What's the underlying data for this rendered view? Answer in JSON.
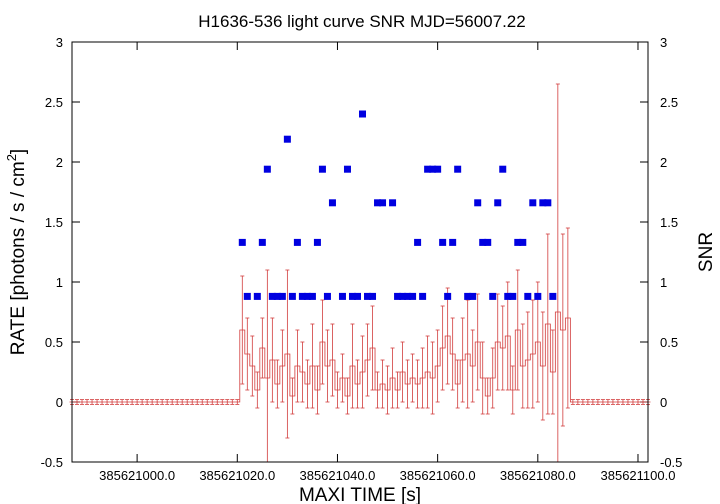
{
  "chart_data": {
    "type": "scatter",
    "title": "H1636-536 light curve  SNR MJD=56007.22",
    "xlabel": "MAXI TIME [s]",
    "ylabel": "RATE [photons / s / cm",
    "ylabel_sup": "2",
    "ylabel_end": "]",
    "y2label": "SNR",
    "xlim": [
      385620987.0,
      385621102.0
    ],
    "ylim": [
      -0.5,
      3
    ],
    "y2lim": [
      -0.5,
      3
    ],
    "x_ticks": [
      385621000.0,
      385621020.0,
      385621040.0,
      385621060.0,
      385621080.0,
      385621100.0
    ],
    "x_tick_labels": [
      "385621000.0",
      "385621020.0",
      "385621040.0",
      "385621060.0",
      "385621080.0",
      "385621100.0"
    ],
    "y_ticks": [
      -0.5,
      0,
      0.5,
      1,
      1.5,
      2,
      2.5,
      3
    ],
    "y_tick_labels": [
      "-0.5",
      "0",
      "0.5",
      "1",
      "1.5",
      "2",
      "2.5",
      "3"
    ],
    "y2_ticks": [
      -0.5,
      0,
      0.5,
      1,
      1.5,
      2,
      2.5,
      3
    ],
    "y2_tick_labels": [
      "-0.5",
      "0",
      "0.5",
      "1",
      "1.5",
      "2",
      "2.5",
      "3"
    ],
    "grid": false,
    "colors": {
      "rate": "#d23c3c",
      "snr": "#0000e0",
      "axis": "#000000"
    },
    "series": [
      {
        "type": "errorbar-step",
        "color": "#d23c3c",
        "x": [
          385620987,
          385620988,
          385620989,
          385620990,
          385620991,
          385620992,
          385620993,
          385620994,
          385620995,
          385620996,
          385620997,
          385620998,
          385620999,
          385621000,
          385621001,
          385621002,
          385621003,
          385621004,
          385621005,
          385621006,
          385621007,
          385621008,
          385621009,
          385621010,
          385621011,
          385621012,
          385621013,
          385621014,
          385621015,
          385621016,
          385621017,
          385621018,
          385621019,
          385621020,
          385621021,
          385621022,
          385621023,
          385621024,
          385621025,
          385621026,
          385621027,
          385621028,
          385621029,
          385621030,
          385621031,
          385621032,
          385621033,
          385621034,
          385621035,
          385621036,
          385621037,
          385621038,
          385621039,
          385621040,
          385621041,
          385621042,
          385621043,
          385621044,
          385621045,
          385621046,
          385621047,
          385621048,
          385621049,
          385621050,
          385621051,
          385621052,
          385621053,
          385621054,
          385621055,
          385621056,
          385621057,
          385621058,
          385621059,
          385621060,
          385621061,
          385621062,
          385621063,
          385621064,
          385621065,
          385621066,
          385621067,
          385621068,
          385621069,
          385621070,
          385621071,
          385621072,
          385621073,
          385621074,
          385621075,
          385621076,
          385621077,
          385621078,
          385621079,
          385621080,
          385621081,
          385621082,
          385621083,
          385621084,
          385621085,
          385621086,
          385621087,
          385621088,
          385621089,
          385621090,
          385621091,
          385621092,
          385621093,
          385621094,
          385621095,
          385621096,
          385621097,
          385621098,
          385621099,
          385621100,
          385621101,
          385621102
        ],
        "y": [
          0,
          0,
          0,
          0,
          0,
          0,
          0,
          0,
          0,
          0,
          0,
          0,
          0,
          0,
          0,
          0,
          0,
          0,
          0,
          0,
          0,
          0,
          0,
          0,
          0,
          0,
          0,
          0,
          0,
          0,
          0,
          0,
          0,
          0,
          0.6,
          0.4,
          0.3,
          0.1,
          0.45,
          0.2,
          0.35,
          0.15,
          0.3,
          0.4,
          0.05,
          0.3,
          0.25,
          0.15,
          0.3,
          0.1,
          0.5,
          0.3,
          0.35,
          0.1,
          0.2,
          0.05,
          0.3,
          0.15,
          0.25,
          0.35,
          0.45,
          0.1,
          0.15,
          0.1,
          0.2,
          0.1,
          0.25,
          0.15,
          0.2,
          0.15,
          0.2,
          0.25,
          0.2,
          0.3,
          0.45,
          0.55,
          0.4,
          0.15,
          0.35,
          0.4,
          0.3,
          0.5,
          0.2,
          0.05,
          0.2,
          0.5,
          0.45,
          0.55,
          0.1,
          0.6,
          0.3,
          0.35,
          0.4,
          0.5,
          0.3,
          0.65,
          0.25,
          0.75,
          0.6,
          0.7,
          0.0,
          0,
          0,
          0,
          0,
          0,
          0,
          0,
          0,
          0,
          0,
          0,
          0,
          0,
          0,
          0
        ],
        "err": [
          0.02,
          0.02,
          0.02,
          0.02,
          0.02,
          0.02,
          0.02,
          0.02,
          0.02,
          0.02,
          0.02,
          0.02,
          0.02,
          0.02,
          0.02,
          0.02,
          0.02,
          0.02,
          0.02,
          0.02,
          0.02,
          0.02,
          0.02,
          0.02,
          0.02,
          0.02,
          0.02,
          0.02,
          0.02,
          0.02,
          0.02,
          0.02,
          0.02,
          0.02,
          0.45,
          0.3,
          0.25,
          0.15,
          0.25,
          0.9,
          0.35,
          0.2,
          0.3,
          0.7,
          0.15,
          0.3,
          0.25,
          0.2,
          0.35,
          0.2,
          0.35,
          0.3,
          0.3,
          0.15,
          0.2,
          0.15,
          0.35,
          0.2,
          0.3,
          0.3,
          0.35,
          0.15,
          0.2,
          0.2,
          0.25,
          0.15,
          0.25,
          0.2,
          0.2,
          0.2,
          0.25,
          0.3,
          0.3,
          0.3,
          0.35,
          0.4,
          0.3,
          0.2,
          0.35,
          0.45,
          0.3,
          0.4,
          0.3,
          0.15,
          0.25,
          0.4,
          0.35,
          0.45,
          0.2,
          0.5,
          0.35,
          0.4,
          0.45,
          0.5,
          0.45,
          0.75,
          0.35,
          1.9,
          0.8,
          0.75,
          0.02,
          0.02,
          0.02,
          0.02,
          0.02,
          0.02,
          0.02,
          0.02,
          0.02,
          0.02,
          0.02,
          0.02,
          0.02,
          0.02,
          0.02,
          0.02
        ]
      },
      {
        "type": "scatter",
        "color": "#0000e0",
        "axis": "right",
        "x": [
          385621021,
          385621022,
          385621024,
          385621025,
          385621026,
          385621027,
          385621028,
          385621029,
          385621030,
          385621031,
          385621032,
          385621033,
          385621034,
          385621035,
          385621036,
          385621037,
          385621038,
          385621039,
          385621041,
          385621042,
          385621043,
          385621044,
          385621045,
          385621046,
          385621047,
          385621048,
          385621049,
          385621051,
          385621052,
          385621053,
          385621054,
          385621055,
          385621056,
          385621057,
          385621058,
          385621059,
          385621060,
          385621061,
          385621062,
          385621063,
          385621064,
          385621066,
          385621067,
          385621068,
          385621069,
          385621070,
          385621071,
          385621072,
          385621073,
          385621074,
          385621075,
          385621076,
          385621077,
          385621078,
          385621079,
          385621080,
          385621081,
          385621082,
          385621083
        ],
        "y": [
          1.33,
          0.88,
          0.88,
          1.33,
          1.94,
          0.88,
          0.88,
          0.88,
          2.19,
          0.88,
          1.33,
          0.88,
          0.88,
          0.88,
          1.33,
          1.94,
          0.88,
          1.66,
          0.88,
          1.94,
          0.88,
          0.88,
          2.4,
          0.88,
          0.88,
          1.66,
          1.66,
          1.66,
          0.88,
          0.88,
          0.88,
          0.88,
          1.33,
          0.88,
          1.94,
          1.94,
          1.94,
          1.33,
          0.88,
          1.33,
          1.94,
          0.88,
          0.88,
          1.66,
          1.33,
          1.33,
          0.88,
          1.66,
          1.94,
          0.88,
          0.88,
          1.33,
          1.33,
          0.88,
          1.66,
          0.88,
          1.66,
          1.66,
          0.88
        ]
      }
    ]
  }
}
